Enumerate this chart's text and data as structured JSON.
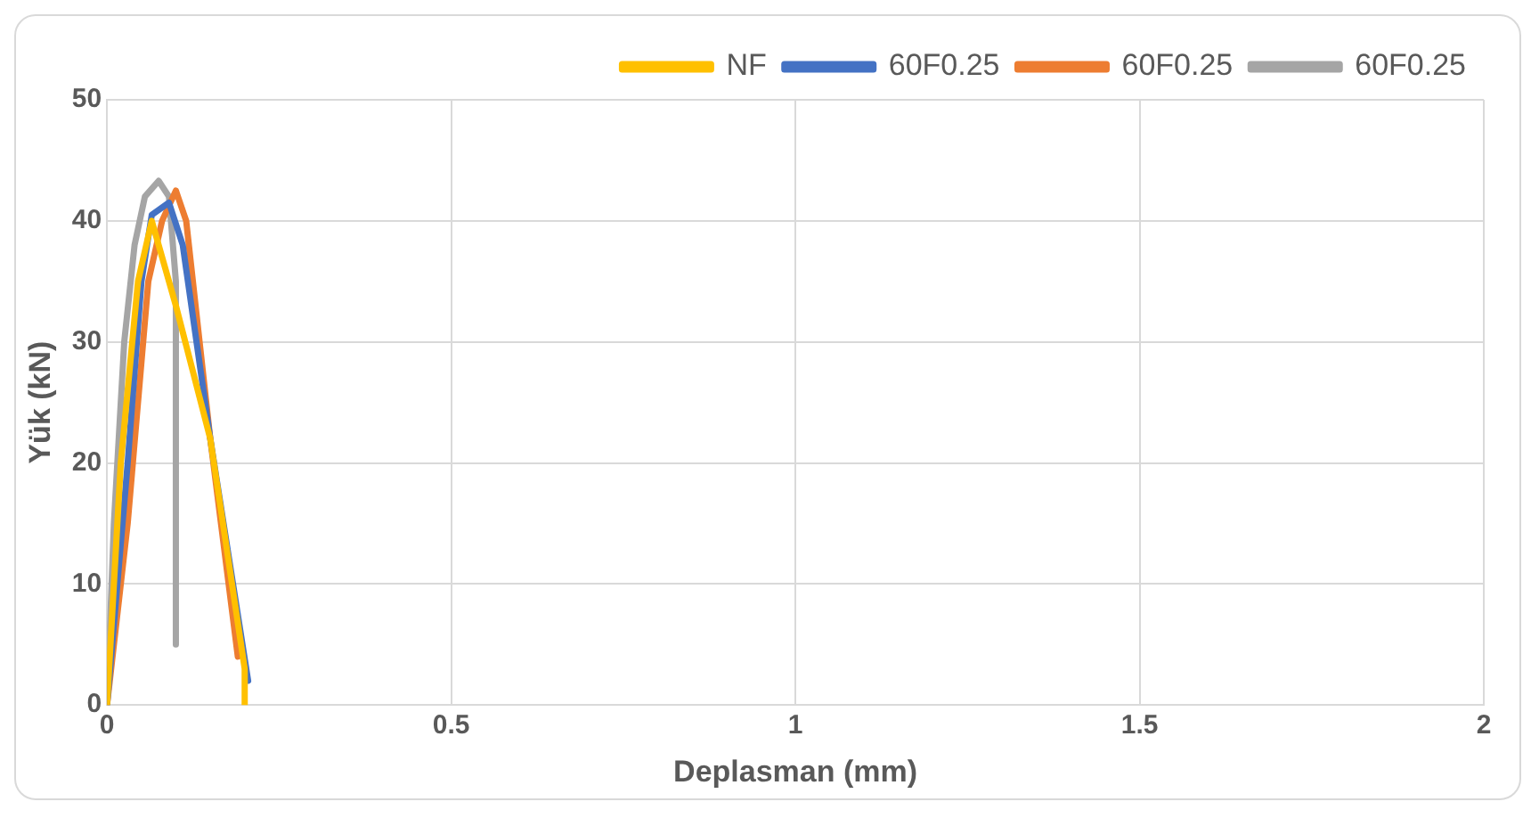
{
  "chart_data": {
    "type": "line",
    "xlabel": "Deplasman (mm)",
    "ylabel": "Yük (kN)",
    "xlim": [
      0,
      2
    ],
    "xticks": [
      0,
      0.5,
      1,
      1.5,
      2
    ],
    "ylim": [
      0,
      50
    ],
    "yticks": [
      0,
      10,
      20,
      30,
      40,
      50
    ],
    "grid": true,
    "legend": "top",
    "marker": "none",
    "line_style": "solid",
    "series": [
      {
        "name": "NF",
        "color": "#ffc000",
        "x": [
          0,
          0.02,
          0.045,
          0.065,
          0.1,
          0.15,
          0.2,
          0.2
        ],
        "values": [
          0,
          20,
          35,
          40,
          33,
          22,
          3,
          0
        ]
      },
      {
        "name": "60F0.25",
        "color": "#4472c4",
        "x": [
          0,
          0.03,
          0.05,
          0.065,
          0.09,
          0.11,
          0.15,
          0.205
        ],
        "values": [
          0,
          20,
          35,
          40.5,
          41.5,
          38,
          22,
          2
        ]
      },
      {
        "name": "60F0.25",
        "color": "#ed7d31",
        "x": [
          0,
          0.03,
          0.06,
          0.08,
          0.1,
          0.115,
          0.15,
          0.19
        ],
        "values": [
          0,
          15,
          35,
          40,
          42.5,
          40,
          22,
          4
        ]
      },
      {
        "name": "60F0.25",
        "color": "#a5a5a5",
        "x": [
          0,
          0.01,
          0.025,
          0.04,
          0.055,
          0.075,
          0.09,
          0.1,
          0.1
        ],
        "values": [
          0,
          15,
          30,
          38,
          42,
          43.3,
          42,
          35,
          5
        ]
      }
    ]
  }
}
